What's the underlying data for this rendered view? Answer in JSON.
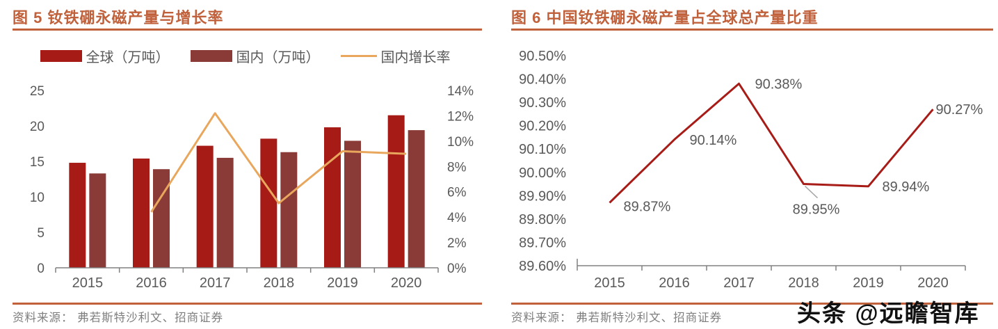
{
  "page": {
    "colors": {
      "accent": "#C0613C",
      "global_bar": "#A61B16",
      "domestic_bar": "#8B3B37",
      "growth_line": "#E8A75D",
      "share_line": "#A81C18",
      "axis_line": "#808080",
      "tick_label": "#595959",
      "source_text": "#7F7F7F",
      "watermark": "#111111"
    }
  },
  "figure5": {
    "title": "图 5  钕铁硼永磁产量与增长率",
    "source": "资料来源：  弗若斯特沙利文、招商证券"
  },
  "figure6": {
    "title": "图 6  中国钕铁硼永磁产量占全球总产量比重",
    "source": "资料来源：  弗若斯特沙利文、招商证券"
  },
  "watermark": {
    "text": "头条 @远瞻智库"
  },
  "chart_data": [
    {
      "type": "bar",
      "title": "钕铁硼永磁产量与增长率",
      "categories": [
        "2015",
        "2016",
        "2017",
        "2018",
        "2019",
        "2020"
      ],
      "series": [
        {
          "name": "全球（万吨）",
          "type": "bar",
          "axis": "left",
          "color": "#A61B16",
          "values": [
            14.8,
            15.4,
            17.2,
            18.2,
            19.8,
            21.5
          ]
        },
        {
          "name": "国内（万吨）",
          "type": "bar",
          "axis": "left",
          "color": "#8B3B37",
          "values": [
            13.3,
            13.9,
            15.5,
            16.3,
            17.9,
            19.4
          ]
        },
        {
          "name": "国内增长率",
          "type": "line",
          "axis": "right",
          "color": "#E8A75D",
          "unit": "%",
          "values": [
            null,
            4.4,
            12.2,
            5.1,
            9.2,
            9.0
          ]
        }
      ],
      "left_axis": {
        "min": 0,
        "max": 25,
        "step": 5,
        "ticks": [
          "0",
          "5",
          "10",
          "15",
          "20",
          "25"
        ]
      },
      "right_axis": {
        "min": 0,
        "max": 14,
        "step": 2,
        "ticks": [
          "0%",
          "2%",
          "4%",
          "6%",
          "8%",
          "10%",
          "12%",
          "14%"
        ]
      },
      "grid": false,
      "legend_position": "top"
    },
    {
      "type": "line",
      "title": "中国钕铁硼永磁产量占全球总产量比重",
      "categories": [
        "2015",
        "2016",
        "2017",
        "2018",
        "2019",
        "2020"
      ],
      "values": [
        89.87,
        90.14,
        90.38,
        89.95,
        89.94,
        90.27
      ],
      "labels": [
        "89.87%",
        "90.14%",
        "90.38%",
        "89.95%",
        "89.94%",
        "90.27%"
      ],
      "color": "#A81C18",
      "ylim": [
        89.6,
        90.5
      ],
      "ytick_step": 0.1,
      "yticks": [
        "89.60%",
        "89.70%",
        "89.80%",
        "89.90%",
        "90.00%",
        "90.10%",
        "90.20%",
        "90.30%",
        "90.40%",
        "90.50%"
      ],
      "grid": false,
      "legend_position": "none"
    }
  ]
}
